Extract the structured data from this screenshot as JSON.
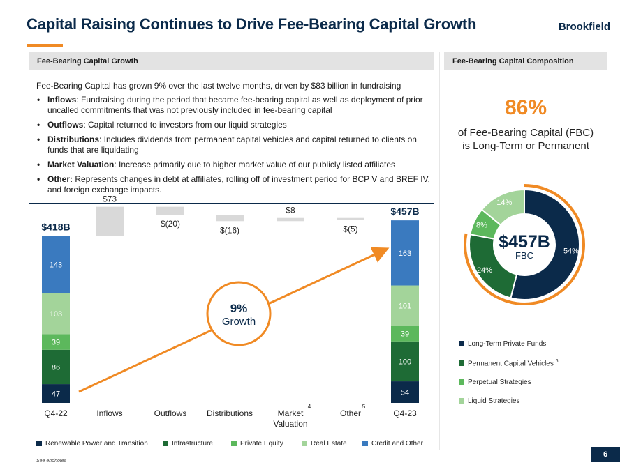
{
  "header": {
    "title": "Capital Raising Continues to Drive Fee-Bearing Capital Growth",
    "logo_text": "Brookfield"
  },
  "left_section": {
    "heading": "Fee-Bearing Capital Growth",
    "intro": "Fee-Bearing Capital has grown 9% over the last twelve months, driven by $83 billion in fundraising",
    "bullets": [
      {
        "term": "Inflows",
        "text": ": Fundraising during the period that became fee-bearing capital as well as deployment of prior uncalled commitments that was not previously included in fee-bearing capital"
      },
      {
        "term": "Outflows",
        "text": ": Capital returned to investors from our liquid strategies"
      },
      {
        "term": "Distributions",
        "text": ": Includes dividends from permanent capital vehicles and capital returned to clients on funds that are liquidating"
      },
      {
        "term": "Market Valuation",
        "text": ": Increase primarily due to higher market value of our publicly listed affiliates"
      },
      {
        "term": "Other:",
        "text": " Represents changes in debt at affiliates, rolling off of investment period for BCP V and BREF IV, and foreign exchange impacts."
      }
    ]
  },
  "right_section": {
    "heading": "Fee-Bearing Capital Composition",
    "big_pct": "86%",
    "big_pct_sub": "of Fee-Bearing Capital (FBC) is Long-Term or Permanent",
    "legend": [
      {
        "label": "Long-Term Private Funds",
        "color": "#0b2a4a",
        "sup": ""
      },
      {
        "label": "Permanent Capital Vehicles",
        "color": "#1e6b35",
        "sup": "6"
      },
      {
        "label": "Perpetual Strategies",
        "color": "#5cb85c",
        "sup": ""
      },
      {
        "label": "Liquid Strategies",
        "color": "#a3d49a",
        "sup": ""
      }
    ]
  },
  "bottom_legend": [
    {
      "label": "Renewable Power and Transition",
      "color": "#0b2a4a"
    },
    {
      "label": "Infrastructure",
      "color": "#1e6b35"
    },
    {
      "label": "Private Equity",
      "color": "#5cb85c"
    },
    {
      "label": "Real Estate",
      "color": "#a3d49a"
    },
    {
      "label": "Credit and Other",
      "color": "#3a7abf"
    }
  ],
  "endnotes": "See endnotes",
  "page_number": "6",
  "chart_data": [
    {
      "type": "bar",
      "subtype": "waterfall",
      "categories": [
        "Q4-22",
        "Inflows",
        "Outflows",
        "Distributions",
        "Market Valuation",
        "Other",
        "Q4-23"
      ],
      "category_sups": [
        "",
        "",
        "",
        "",
        "4",
        "5",
        ""
      ],
      "totals": [
        {
          "category": "Q4-22",
          "label": "$418B",
          "segments": [
            47,
            86,
            39,
            103,
            143
          ]
        },
        {
          "category": "Q4-23",
          "label": "$457B",
          "segments": [
            54,
            100,
            39,
            101,
            163
          ]
        }
      ],
      "series": [
        {
          "name": "Renewable Power and Transition",
          "color": "#0b2a4a"
        },
        {
          "name": "Infrastructure",
          "color": "#1e6b35"
        },
        {
          "name": "Private Equity",
          "color": "#5cb85c"
        },
        {
          "name": "Real Estate",
          "color": "#a3d49a"
        },
        {
          "name": "Credit and Other",
          "color": "#3a7abf"
        }
      ],
      "changes": [
        {
          "category": "Inflows",
          "value": 73,
          "label": "$73"
        },
        {
          "category": "Outflows",
          "value": -20,
          "label": "$(20)"
        },
        {
          "category": "Distributions",
          "value": -16,
          "label": "$(16)"
        },
        {
          "category": "Market Valuation",
          "value": 8,
          "label": "$8"
        },
        {
          "category": "Other",
          "value": -5,
          "label": "$(5)"
        }
      ],
      "annotation": {
        "value": "9%",
        "text": "Growth"
      }
    },
    {
      "type": "pie",
      "center_value": "$457B",
      "center_label": "FBC",
      "slices": [
        {
          "name": "Long-Term Private Funds",
          "value": 54,
          "label": "54%",
          "color": "#0b2a4a"
        },
        {
          "name": "Permanent Capital Vehicles",
          "value": 24,
          "label": "24%",
          "color": "#1e6b35"
        },
        {
          "name": "Perpetual Strategies",
          "value": 8,
          "label": "8%",
          "color": "#5cb85c"
        },
        {
          "name": "Liquid Strategies",
          "value": 14,
          "label": "14%",
          "color": "#a3d49a"
        }
      ]
    }
  ]
}
